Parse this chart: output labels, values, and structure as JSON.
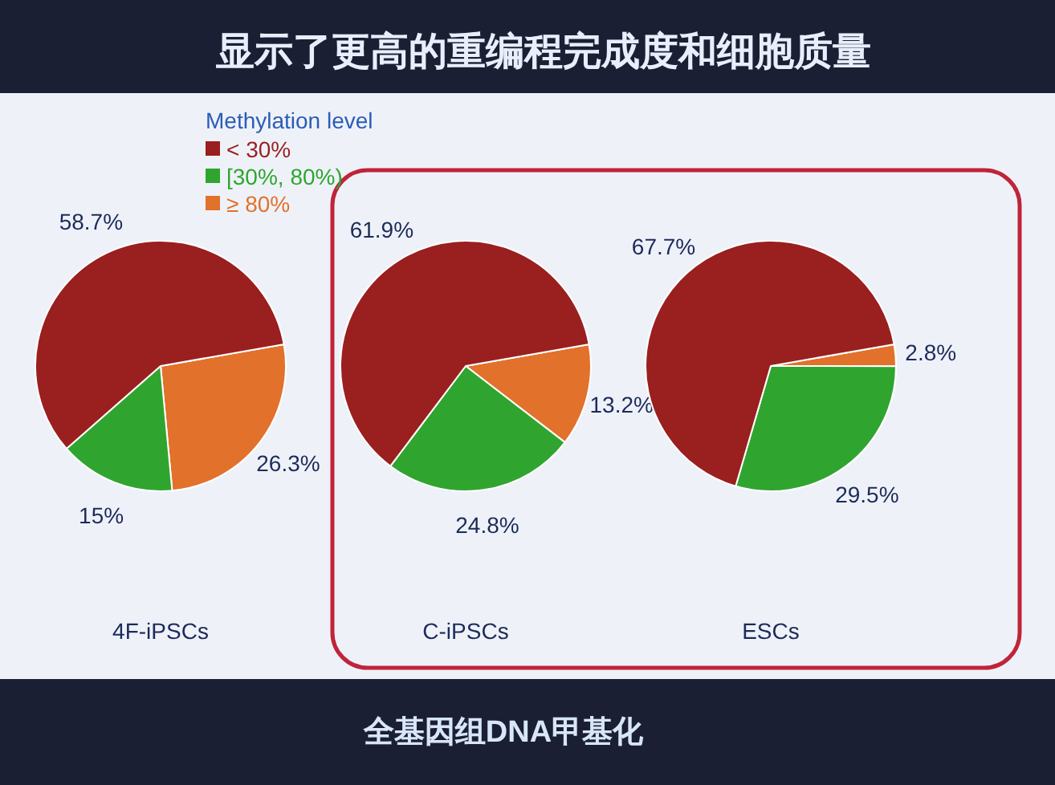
{
  "chart_data": [
    {
      "type": "pie",
      "title": "显示了更高的重编程完成度和细胞质量",
      "legend_title": "Methylation level",
      "legend": "top right",
      "categories": [
        "< 30%",
        "[30%, 80%)",
        "≥ 80%"
      ],
      "values": [
        58.7,
        15,
        26.3
      ],
      "colors": [
        "#9a1f1f",
        "#2fa52f",
        "#e2712c"
      ],
      "value_labels": [
        "58.7%",
        "15%",
        "26.3%"
      ],
      "xlabel": "4F-iPSCs",
      "annotations": [
        "全基因组DNA甲基化"
      ]
    },
    {
      "type": "pie",
      "categories": [
        null,
        null,
        null
      ],
      "values": [
        61.9,
        24.8,
        13.2
      ],
      "colors": [
        "#9a1f1f",
        "#2fa52f",
        "#e2712c"
      ],
      "value_labels": [
        "61.9%",
        "24.8%",
        "13.2%"
      ],
      "xlabel": "C-iPSCs"
    },
    {
      "type": "pie",
      "categories": [
        null,
        null,
        null
      ],
      "values": [
        67.7,
        29.5,
        2.8
      ],
      "colors": [
        "#9a1f1f",
        "#2fa52f",
        "#e2712c"
      ],
      "value_labels": [
        "67.7%",
        "29.5%",
        "2.8%"
      ],
      "xlabel": "ESCs"
    }
  ]
}
